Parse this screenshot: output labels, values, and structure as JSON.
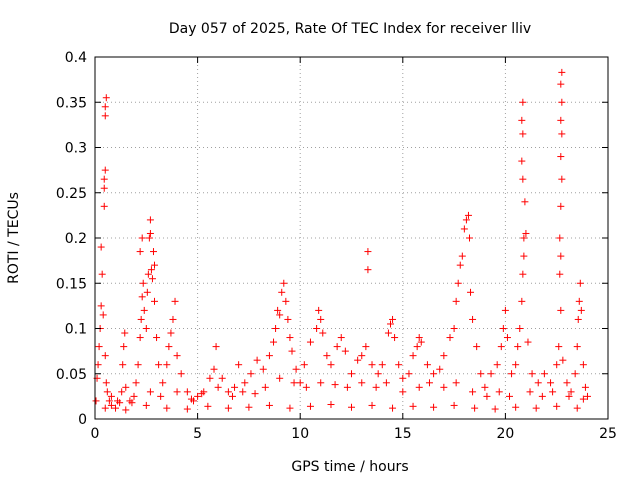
{
  "chart_data": {
    "type": "scatter",
    "title": "Day 057 of 2025, Rate Of TEC Index for receiver lliv",
    "xlabel": "GPS time / hours",
    "ylabel": "ROTI / TECUs",
    "xlim": [
      0,
      25
    ],
    "ylim": [
      0,
      0.4
    ],
    "xticks": [
      0,
      5,
      10,
      15,
      20,
      25
    ],
    "xtick_labels": [
      "0",
      "5",
      "10",
      "15",
      "20",
      "25"
    ],
    "yticks": [
      0,
      0.05,
      0.1,
      0.15,
      0.2,
      0.25,
      0.3,
      0.35,
      0.4
    ],
    "ytick_labels": [
      "0",
      "0.05",
      "0.1",
      "0.15",
      "0.2",
      "0.25",
      "0.3",
      "0.35",
      "0.4"
    ],
    "grid": true,
    "marker": "plus",
    "color": "#ff0000",
    "series": [
      {
        "name": "ROTI",
        "points": [
          [
            0.05,
            0.02
          ],
          [
            0.1,
            0.045
          ],
          [
            0.15,
            0.06
          ],
          [
            0.2,
            0.08
          ],
          [
            0.25,
            0.1
          ],
          [
            0.3,
            0.125
          ],
          [
            0.3,
            0.19
          ],
          [
            0.35,
            0.16
          ],
          [
            0.4,
            0.115
          ],
          [
            0.45,
            0.255
          ],
          [
            0.45,
            0.265
          ],
          [
            0.5,
            0.275
          ],
          [
            0.45,
            0.235
          ],
          [
            0.5,
            0.335
          ],
          [
            0.5,
            0.345
          ],
          [
            0.55,
            0.355
          ],
          [
            0.5,
            0.07
          ],
          [
            0.55,
            0.04
          ],
          [
            0.6,
            0.03
          ],
          [
            0.7,
            0.02
          ],
          [
            0.8,
            0.015
          ],
          [
            1.0,
            0.012
          ],
          [
            1.2,
            0.018
          ],
          [
            1.3,
            0.03
          ],
          [
            1.35,
            0.06
          ],
          [
            1.4,
            0.08
          ],
          [
            1.45,
            0.095
          ],
          [
            1.5,
            0.035
          ],
          [
            1.7,
            0.02
          ],
          [
            1.9,
            0.025
          ],
          [
            2.0,
            0.04
          ],
          [
            2.1,
            0.06
          ],
          [
            2.2,
            0.09
          ],
          [
            2.25,
            0.11
          ],
          [
            2.3,
            0.135
          ],
          [
            2.35,
            0.15
          ],
          [
            2.2,
            0.185
          ],
          [
            2.3,
            0.2
          ],
          [
            2.4,
            0.12
          ],
          [
            2.5,
            0.1
          ],
          [
            2.55,
            0.14
          ],
          [
            2.6,
            0.16
          ],
          [
            2.65,
            0.2
          ],
          [
            2.7,
            0.205
          ],
          [
            2.7,
            0.22
          ],
          [
            2.75,
            0.165
          ],
          [
            2.8,
            0.155
          ],
          [
            2.85,
            0.185
          ],
          [
            2.9,
            0.17
          ],
          [
            2.9,
            0.13
          ],
          [
            3.0,
            0.09
          ],
          [
            3.1,
            0.06
          ],
          [
            3.3,
            0.04
          ],
          [
            3.5,
            0.06
          ],
          [
            3.6,
            0.08
          ],
          [
            3.7,
            0.095
          ],
          [
            3.8,
            0.11
          ],
          [
            3.9,
            0.13
          ],
          [
            4.0,
            0.07
          ],
          [
            4.2,
            0.05
          ],
          [
            4.5,
            0.03
          ],
          [
            4.8,
            0.02
          ],
          [
            5.0,
            0.025
          ],
          [
            5.3,
            0.03
          ],
          [
            5.6,
            0.045
          ],
          [
            5.8,
            0.055
          ],
          [
            5.9,
            0.08
          ],
          [
            6.2,
            0.045
          ],
          [
            6.5,
            0.03
          ],
          [
            6.8,
            0.035
          ],
          [
            7.0,
            0.06
          ],
          [
            7.3,
            0.04
          ],
          [
            7.6,
            0.05
          ],
          [
            7.9,
            0.065
          ],
          [
            8.2,
            0.055
          ],
          [
            8.5,
            0.07
          ],
          [
            8.7,
            0.085
          ],
          [
            8.8,
            0.1
          ],
          [
            8.9,
            0.12
          ],
          [
            9.0,
            0.115
          ],
          [
            9.1,
            0.14
          ],
          [
            9.2,
            0.15
          ],
          [
            9.3,
            0.13
          ],
          [
            9.4,
            0.11
          ],
          [
            9.5,
            0.09
          ],
          [
            9.6,
            0.075
          ],
          [
            9.8,
            0.055
          ],
          [
            10.0,
            0.04
          ],
          [
            10.2,
            0.06
          ],
          [
            10.5,
            0.085
          ],
          [
            10.8,
            0.1
          ],
          [
            10.9,
            0.12
          ],
          [
            11.0,
            0.11
          ],
          [
            11.1,
            0.095
          ],
          [
            11.3,
            0.07
          ],
          [
            11.5,
            0.06
          ],
          [
            11.8,
            0.08
          ],
          [
            12.0,
            0.09
          ],
          [
            12.2,
            0.075
          ],
          [
            12.5,
            0.05
          ],
          [
            12.8,
            0.065
          ],
          [
            13.0,
            0.07
          ],
          [
            13.2,
            0.08
          ],
          [
            13.3,
            0.185
          ],
          [
            13.3,
            0.165
          ],
          [
            13.5,
            0.06
          ],
          [
            13.8,
            0.05
          ],
          [
            14.0,
            0.06
          ],
          [
            14.3,
            0.095
          ],
          [
            14.4,
            0.105
          ],
          [
            14.5,
            0.11
          ],
          [
            14.6,
            0.09
          ],
          [
            14.8,
            0.06
          ],
          [
            15.0,
            0.045
          ],
          [
            15.3,
            0.05
          ],
          [
            15.5,
            0.07
          ],
          [
            15.7,
            0.08
          ],
          [
            15.8,
            0.09
          ],
          [
            15.9,
            0.085
          ],
          [
            16.2,
            0.06
          ],
          [
            16.5,
            0.05
          ],
          [
            16.8,
            0.055
          ],
          [
            17.0,
            0.07
          ],
          [
            17.3,
            0.09
          ],
          [
            17.5,
            0.1
          ],
          [
            17.6,
            0.13
          ],
          [
            17.7,
            0.15
          ],
          [
            17.8,
            0.17
          ],
          [
            17.9,
            0.18
          ],
          [
            18.0,
            0.21
          ],
          [
            18.1,
            0.22
          ],
          [
            18.2,
            0.225
          ],
          [
            18.25,
            0.2
          ],
          [
            18.3,
            0.14
          ],
          [
            18.4,
            0.11
          ],
          [
            18.6,
            0.08
          ],
          [
            18.8,
            0.05
          ],
          [
            19.0,
            0.035
          ],
          [
            19.3,
            0.05
          ],
          [
            19.6,
            0.06
          ],
          [
            19.8,
            0.08
          ],
          [
            19.9,
            0.1
          ],
          [
            20.0,
            0.12
          ],
          [
            20.1,
            0.09
          ],
          [
            20.3,
            0.05
          ],
          [
            20.5,
            0.06
          ],
          [
            20.6,
            0.08
          ],
          [
            20.7,
            0.1
          ],
          [
            20.8,
            0.13
          ],
          [
            20.85,
            0.16
          ],
          [
            20.9,
            0.18
          ],
          [
            20.9,
            0.2
          ],
          [
            20.95,
            0.24
          ],
          [
            20.85,
            0.265
          ],
          [
            20.8,
            0.285
          ],
          [
            20.85,
            0.315
          ],
          [
            20.8,
            0.33
          ],
          [
            20.85,
            0.35
          ],
          [
            21.0,
            0.205
          ],
          [
            21.1,
            0.085
          ],
          [
            21.3,
            0.05
          ],
          [
            21.6,
            0.04
          ],
          [
            21.9,
            0.05
          ],
          [
            22.2,
            0.04
          ],
          [
            22.5,
            0.06
          ],
          [
            22.6,
            0.08
          ],
          [
            22.7,
            0.12
          ],
          [
            22.65,
            0.16
          ],
          [
            22.7,
            0.18
          ],
          [
            22.65,
            0.2
          ],
          [
            22.7,
            0.235
          ],
          [
            22.75,
            0.265
          ],
          [
            22.7,
            0.29
          ],
          [
            22.75,
            0.315
          ],
          [
            22.7,
            0.33
          ],
          [
            22.75,
            0.35
          ],
          [
            22.7,
            0.37
          ],
          [
            22.75,
            0.383
          ],
          [
            22.8,
            0.065
          ],
          [
            23.0,
            0.04
          ],
          [
            23.2,
            0.03
          ],
          [
            23.4,
            0.05
          ],
          [
            23.5,
            0.08
          ],
          [
            23.55,
            0.11
          ],
          [
            23.6,
            0.13
          ],
          [
            23.65,
            0.15
          ],
          [
            23.7,
            0.12
          ],
          [
            23.8,
            0.06
          ],
          [
            23.9,
            0.035
          ],
          [
            24.0,
            0.025
          ],
          [
            0.5,
            0.012
          ],
          [
            1.5,
            0.01
          ],
          [
            2.5,
            0.015
          ],
          [
            3.5,
            0.012
          ],
          [
            4.5,
            0.011
          ],
          [
            5.5,
            0.014
          ],
          [
            6.5,
            0.012
          ],
          [
            7.5,
            0.013
          ],
          [
            8.5,
            0.015
          ],
          [
            9.5,
            0.012
          ],
          [
            10.5,
            0.014
          ],
          [
            11.5,
            0.016
          ],
          [
            12.5,
            0.013
          ],
          [
            13.5,
            0.015
          ],
          [
            14.5,
            0.012
          ],
          [
            15.5,
            0.014
          ],
          [
            16.5,
            0.013
          ],
          [
            17.5,
            0.015
          ],
          [
            18.5,
            0.012
          ],
          [
            19.5,
            0.011
          ],
          [
            20.5,
            0.013
          ],
          [
            21.5,
            0.012
          ],
          [
            22.5,
            0.014
          ],
          [
            23.5,
            0.012
          ],
          [
            0.8,
            0.025
          ],
          [
            1.1,
            0.02
          ],
          [
            1.8,
            0.018
          ],
          [
            2.7,
            0.03
          ],
          [
            3.2,
            0.025
          ],
          [
            4.0,
            0.03
          ],
          [
            4.7,
            0.022
          ],
          [
            5.2,
            0.028
          ],
          [
            6.0,
            0.035
          ],
          [
            6.7,
            0.025
          ],
          [
            7.2,
            0.03
          ],
          [
            7.8,
            0.028
          ],
          [
            8.3,
            0.035
          ],
          [
            9.0,
            0.045
          ],
          [
            9.7,
            0.04
          ],
          [
            10.3,
            0.035
          ],
          [
            11.0,
            0.04
          ],
          [
            11.7,
            0.038
          ],
          [
            12.3,
            0.035
          ],
          [
            13.0,
            0.04
          ],
          [
            13.7,
            0.035
          ],
          [
            14.2,
            0.04
          ],
          [
            15.0,
            0.03
          ],
          [
            15.8,
            0.035
          ],
          [
            16.3,
            0.04
          ],
          [
            17.0,
            0.035
          ],
          [
            17.6,
            0.04
          ],
          [
            18.4,
            0.03
          ],
          [
            19.1,
            0.025
          ],
          [
            19.7,
            0.03
          ],
          [
            20.2,
            0.025
          ],
          [
            21.2,
            0.03
          ],
          [
            21.8,
            0.025
          ],
          [
            22.3,
            0.03
          ],
          [
            23.1,
            0.025
          ],
          [
            23.8,
            0.022
          ]
        ]
      }
    ]
  }
}
